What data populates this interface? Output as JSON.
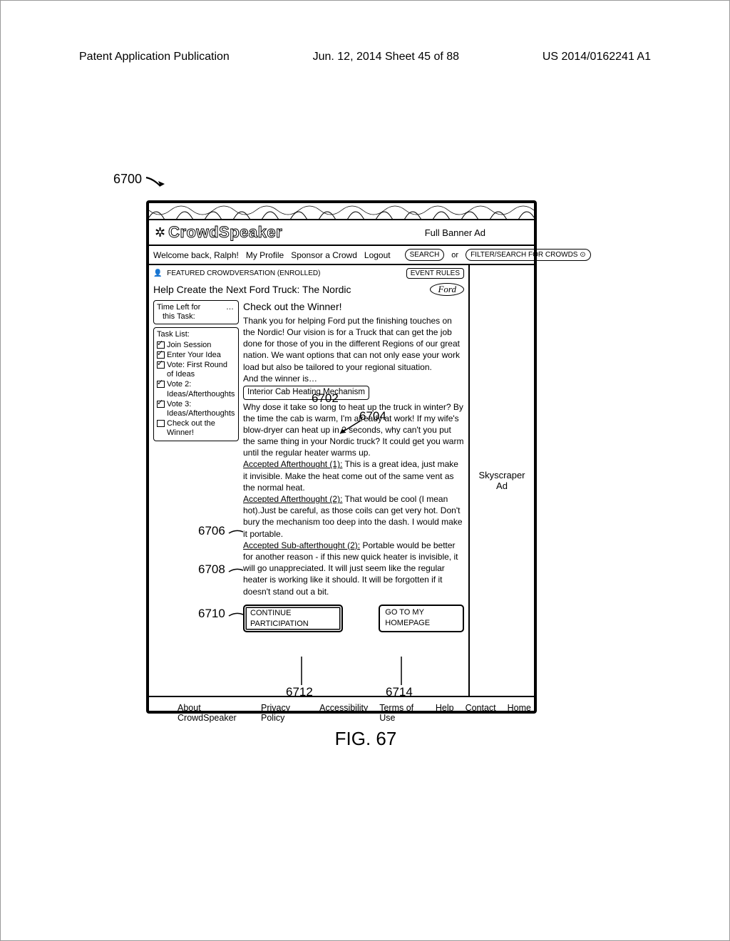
{
  "page_header": {
    "left": "Patent Application Publication",
    "center": "Jun. 12, 2014  Sheet 45 of 88",
    "right": "US 2014/0162241 A1"
  },
  "ref_main": "6700",
  "logo_text": "CrowdSpeaker",
  "full_banner_ad": "Full Banner Ad",
  "nav": {
    "welcome": "Welcome back, Ralph!",
    "profile": "My Profile",
    "sponsor": "Sponsor a Crowd",
    "logout": "Logout",
    "search": "SEARCH",
    "or": "or",
    "filter": "FILTER/SEARCH FOR CROWDS ⊙"
  },
  "featured": "FEATURED CROWDVERSATION (ENROLLED)",
  "event_rules": "EVENT RULES",
  "session_title": "Help Create the Next Ford Truck: The Nordic",
  "brand": "Ford",
  "timer": {
    "label1": "Time Left for",
    "label2": "this Task:",
    "dots": "…"
  },
  "task_list": {
    "header": "Task List:",
    "items": [
      {
        "label": "Join Session",
        "checked": true
      },
      {
        "label": "Enter Your Idea",
        "checked": true
      },
      {
        "label": "Vote: First Round of Ideas",
        "checked": true
      },
      {
        "label": "Vote 2: Ideas/Afterthoughts",
        "checked": true
      },
      {
        "label": "Vote 3: Ideas/Afterthoughts",
        "checked": true
      },
      {
        "label": "Check out the Winner!",
        "checked": false
      }
    ]
  },
  "winner": {
    "heading": "Check out the Winner!",
    "intro": "Thank you for helping Ford put the finishing touches on the Nordic! Our vision is for a Truck that can get the job done for those of you in the different Regions of our great nation. We want options that can not only ease your work load but also be tailored to your regional situation.",
    "and_winner": "And the winner is…",
    "idea_title": "Interior Cab Heating Mechanism",
    "idea_body": "Why dose it take so long to heat up the truck in winter? By the time the cab is warm, I'm already at work! If my wife's blow-dryer can heat up in 2 seconds, why can't you put the same thing in your Nordic truck? It could get you warm until the regular heater warms up.",
    "aft1_label": "Accepted Afterthought (1):",
    "aft1": " This is a great idea, just make it invisible. Make the heat come out of the same vent as the normal heat.",
    "aft2_label": "Accepted Afterthought (2):",
    "aft2": " That would be cool (I mean hot).Just be careful, as those coils can get very hot. Don't bury the mechanism too deep into the dash. I would make it portable.",
    "sub2_label": "Accepted Sub-afterthought (2):",
    "sub2": " Portable would be better for another reason - if this new quick heater is invisible, it will go unappreciated. It will just seem like the regular heater is working like it should. It will be forgotten if it doesn't stand out a bit."
  },
  "buttons": {
    "continue": "CONTINUE PARTICIPATION",
    "home": "GO TO MY HOMEPAGE"
  },
  "skyscraper": "Skyscraper Ad",
  "footer": [
    "About CrowdSpeaker",
    "Privacy Policy",
    "Accessibility",
    "Terms of Use",
    "Help",
    "Contact",
    "Home"
  ],
  "callouts": {
    "c6702": "6702",
    "c6704": "6704",
    "c6706": "6706",
    "c6708": "6708",
    "c6710": "6710",
    "c6712": "6712",
    "c6714": "6714"
  },
  "figure": "FIG. 67"
}
